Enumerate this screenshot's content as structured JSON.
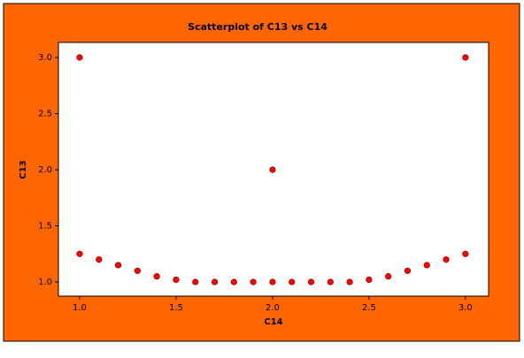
{
  "chart_data": {
    "type": "scatter",
    "title": "Scatterplot of C13 vs C14",
    "xlabel": "C14",
    "ylabel": "C13",
    "x": [
      1.0,
      1.0,
      1.1,
      1.2,
      1.3,
      1.4,
      1.5,
      1.6,
      1.7,
      1.8,
      1.9,
      2.0,
      2.0,
      2.1,
      2.2,
      2.3,
      2.4,
      2.5,
      2.6,
      2.7,
      2.8,
      2.9,
      3.0,
      3.0
    ],
    "y": [
      3.0,
      1.25,
      1.2,
      1.15,
      1.1,
      1.05,
      1.02,
      1.0,
      1.0,
      1.0,
      1.0,
      2.0,
      1.0,
      1.0,
      1.0,
      1.0,
      1.0,
      1.02,
      1.05,
      1.1,
      1.15,
      1.2,
      3.0,
      1.25
    ],
    "color": "#ff0000",
    "xlim": [
      0.89,
      3.12
    ],
    "ylim": [
      0.874,
      3.134
    ],
    "xticks": [
      {
        "value": 1.0,
        "label": "1.0"
      },
      {
        "value": 1.5,
        "label": "1.5"
      },
      {
        "value": 2.0,
        "label": "2.0"
      },
      {
        "value": 2.5,
        "label": "2.5"
      },
      {
        "value": 3.0,
        "label": "3.0"
      }
    ],
    "yticks": [
      {
        "value": 1.0,
        "label": "1.0"
      },
      {
        "value": 1.5,
        "label": "1.5"
      },
      {
        "value": 2.0,
        "label": "2.0"
      },
      {
        "value": 2.5,
        "label": "2.5"
      },
      {
        "value": 3.0,
        "label": "3.0"
      }
    ],
    "grid": false
  }
}
